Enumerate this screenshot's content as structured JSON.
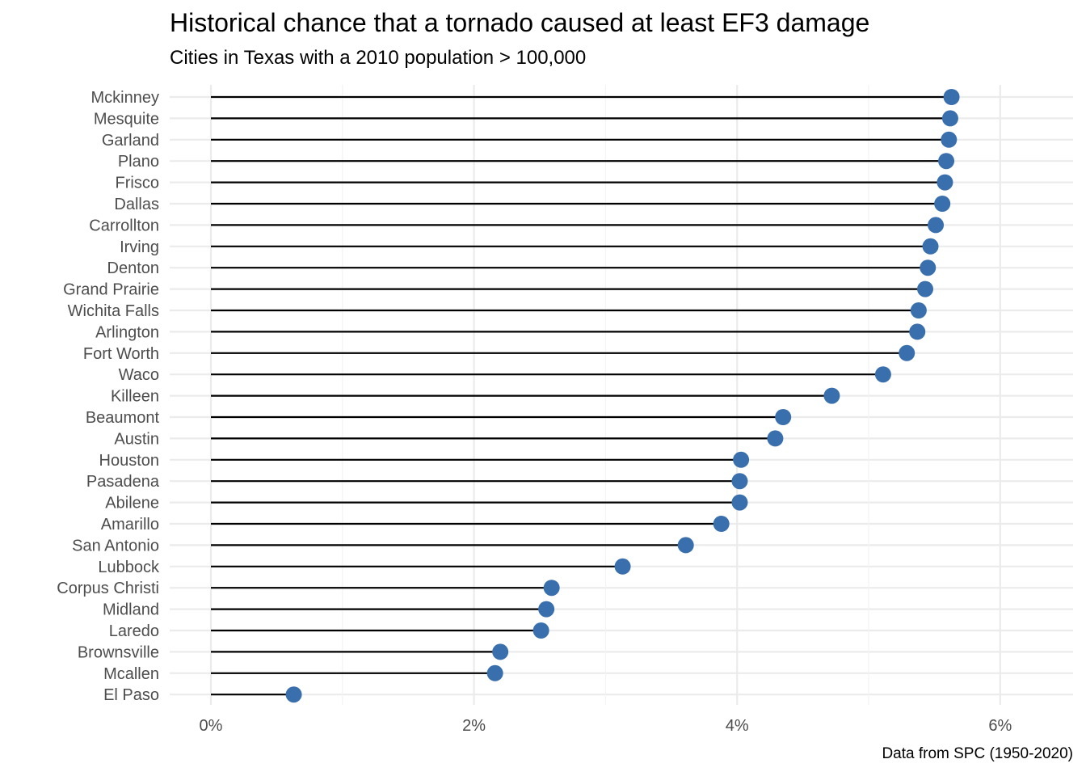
{
  "title": "Historical chance that a tornado caused at least EF3 damage",
  "subtitle": "Cities in Texas with a 2010 population > 100,000",
  "caption": "Data from SPC (1950-2020)",
  "colors": {
    "point": "#3a6fad",
    "segment": "#000000",
    "grid": "#ebebeb",
    "axis_text": "#4d4d4d"
  },
  "chart_data": {
    "type": "lollipop",
    "orientation": "horizontal",
    "xlabel": "",
    "ylabel": "",
    "xlim": [
      -0.2,
      6.55
    ],
    "x_ticks": [
      0,
      2,
      4,
      6
    ],
    "x_tick_labels": [
      "0%",
      "2%",
      "4%",
      "6%"
    ],
    "x_minor_ticks": [
      1,
      3,
      5
    ],
    "grid": true,
    "legend": "none",
    "categories": [
      "Mckinney",
      "Mesquite",
      "Garland",
      "Plano",
      "Frisco",
      "Dallas",
      "Carrollton",
      "Irving",
      "Denton",
      "Grand Prairie",
      "Wichita Falls",
      "Arlington",
      "Fort Worth",
      "Waco",
      "Killeen",
      "Beaumont",
      "Austin",
      "Houston",
      "Pasadena",
      "Abilene",
      "Amarillo",
      "San Antonio",
      "Lubbock",
      "Corpus Christi",
      "Midland",
      "Laredo",
      "Brownsville",
      "Mcallen",
      "El Paso"
    ],
    "values": [
      5.63,
      5.62,
      5.61,
      5.59,
      5.58,
      5.56,
      5.51,
      5.47,
      5.45,
      5.43,
      5.38,
      5.37,
      5.29,
      5.11,
      4.72,
      4.35,
      4.29,
      4.03,
      4.02,
      4.02,
      3.88,
      3.61,
      3.13,
      2.59,
      2.55,
      2.51,
      2.2,
      2.16,
      0.63
    ]
  }
}
